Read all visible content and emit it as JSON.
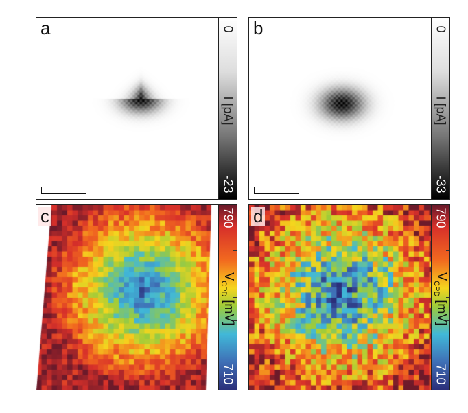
{
  "panels": [
    {
      "label": "a",
      "type": "current"
    },
    {
      "label": "b",
      "type": "current"
    },
    {
      "label": "c",
      "type": "cpd"
    },
    {
      "label": "d",
      "type": "cpd"
    }
  ],
  "colorbars": {
    "a": {
      "top": "0",
      "bottom": "-23",
      "title": "I [pA]"
    },
    "b": {
      "top": "0",
      "bottom": "-33",
      "title": "I [pA]"
    },
    "c": {
      "top": "790",
      "bottom": "710",
      "title_main": "V",
      "title_sub": "CPD",
      "title_unit": " [mV]"
    },
    "d": {
      "top": "790",
      "bottom": "710",
      "title_main": "V",
      "title_sub": "CPD",
      "title_unit": " [mV]"
    }
  },
  "colors": {
    "low": "#2b3990",
    "high": "#b2182b"
  }
}
